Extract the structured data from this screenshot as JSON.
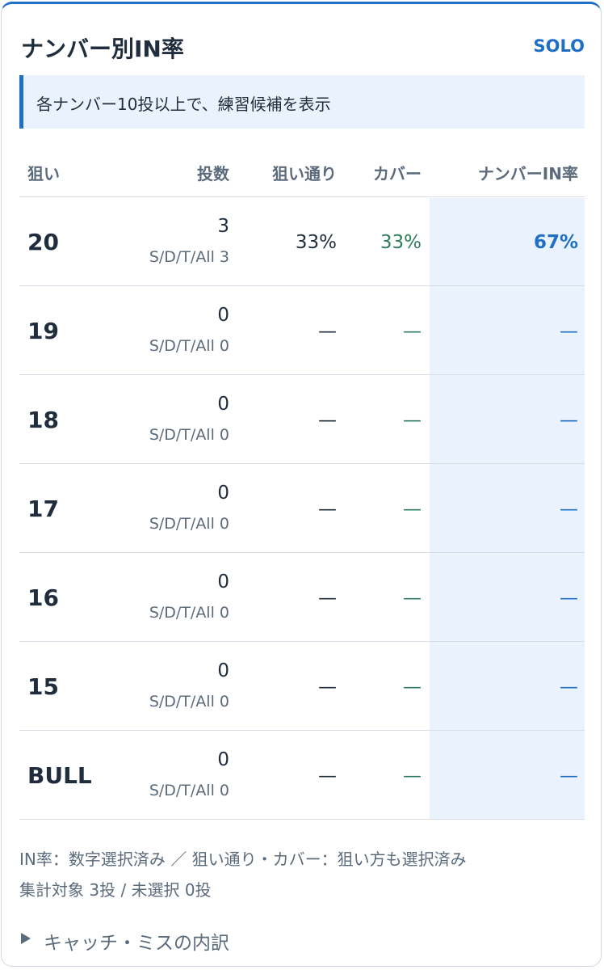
{
  "header": {
    "title": "ナンバー別IN率",
    "badge": "SOLO"
  },
  "notice": "各ナンバー10投以上で、練習候補を表示",
  "table": {
    "headers": [
      "狙い",
      "投数",
      "狙い通り",
      "カバー",
      "ナンバーIN率"
    ],
    "rows": [
      {
        "target": "20",
        "throws": "3",
        "breakdown": "S/D/T/All 3",
        "aim": "33%",
        "cover": "33%",
        "in_rate": "67%"
      },
      {
        "target": "19",
        "throws": "0",
        "breakdown": "S/D/T/All 0",
        "aim": "—",
        "cover": "—",
        "in_rate": "—"
      },
      {
        "target": "18",
        "throws": "0",
        "breakdown": "S/D/T/All 0",
        "aim": "—",
        "cover": "—",
        "in_rate": "—"
      },
      {
        "target": "17",
        "throws": "0",
        "breakdown": "S/D/T/All 0",
        "aim": "—",
        "cover": "—",
        "in_rate": "—"
      },
      {
        "target": "16",
        "throws": "0",
        "breakdown": "S/D/T/All 0",
        "aim": "—",
        "cover": "—",
        "in_rate": "—"
      },
      {
        "target": "15",
        "throws": "0",
        "breakdown": "S/D/T/All 0",
        "aim": "—",
        "cover": "—",
        "in_rate": "—"
      },
      {
        "target": "BULL",
        "throws": "0",
        "breakdown": "S/D/T/All 0",
        "aim": "—",
        "cover": "—",
        "in_rate": "—"
      }
    ]
  },
  "footer": {
    "notes": [
      "IN率：数字選択済み ／ 狙い通り・カバー：狙い方も選択済み",
      "集計対象 3投 / 未選択 0投"
    ],
    "details": "キャッチ・ミスの内訳"
  }
}
